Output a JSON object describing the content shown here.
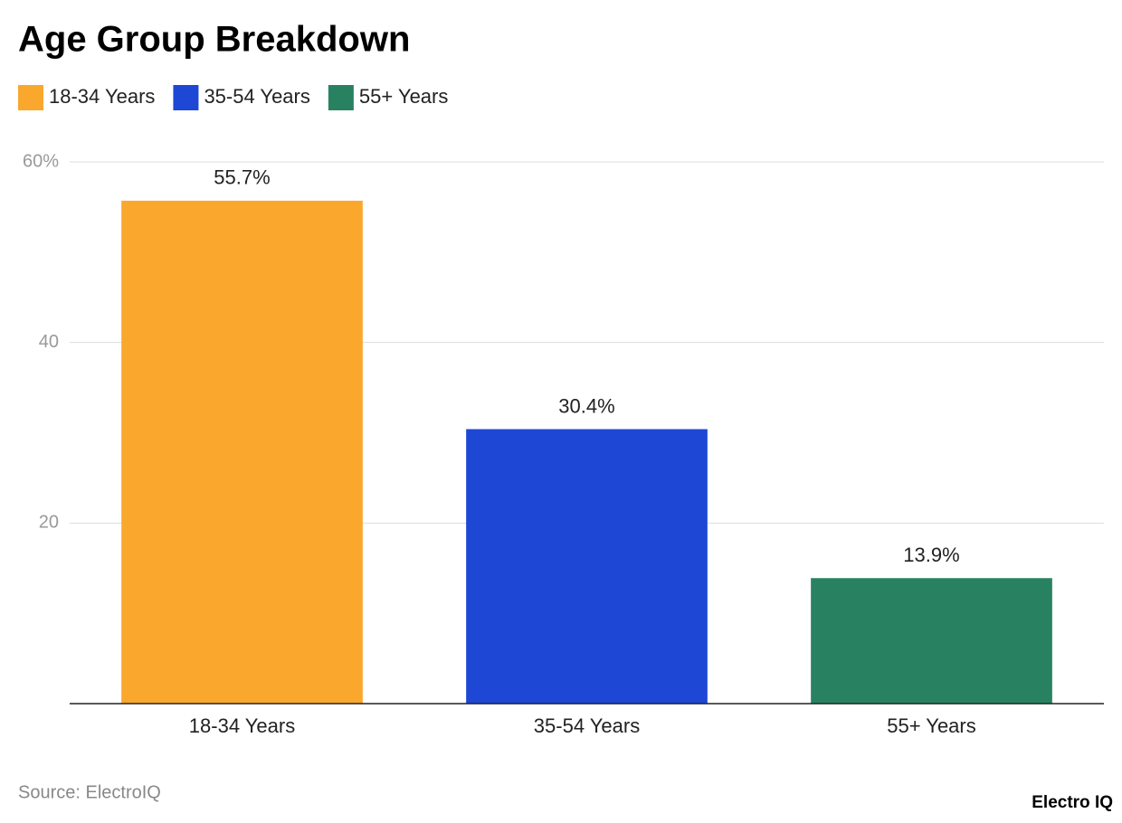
{
  "chart_data": {
    "type": "bar",
    "title": "Age Group Breakdown",
    "categories": [
      "18-34 Years",
      "35-54 Years",
      "55+ Years"
    ],
    "values": [
      55.7,
      30.4,
      13.9
    ],
    "value_labels": [
      "55.7%",
      "30.4%",
      "13.9%"
    ],
    "colors": [
      "#f9a82d",
      "#1e47d6",
      "#288262"
    ],
    "ylim": [
      0,
      60
    ],
    "yticks": [
      20,
      40,
      {
        "value": 60,
        "label": "60%"
      }
    ],
    "grid": true,
    "legend": "top-left",
    "source": "Source: ElectroIQ",
    "brand": "Electro IQ"
  }
}
